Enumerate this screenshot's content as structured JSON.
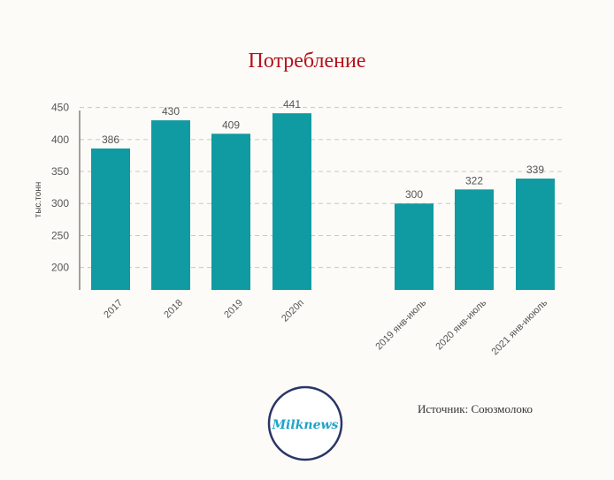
{
  "title": "Потребление",
  "source": "Источник: Союзмолоко",
  "logo_text": "Milknews",
  "colors": {
    "bar": "#0f9ba1",
    "title": "#b5121b",
    "logo_ring": "#2a3566",
    "logo_text": "#1fa3c9"
  },
  "chart_data": {
    "type": "bar",
    "title": "Потребление",
    "ylabel": "тыс.тонн",
    "xlabel": "",
    "ylim": [
      165,
      455
    ],
    "yticks": [
      200,
      250,
      300,
      350,
      400,
      450
    ],
    "grid": true,
    "categories": [
      "2017",
      "2018",
      "2019",
      "2020п",
      "2019 янв-июль",
      "2020 янв-июль",
      "2021 янв-иююль"
    ],
    "values": [
      386,
      430,
      409,
      441,
      300,
      322,
      339
    ]
  }
}
